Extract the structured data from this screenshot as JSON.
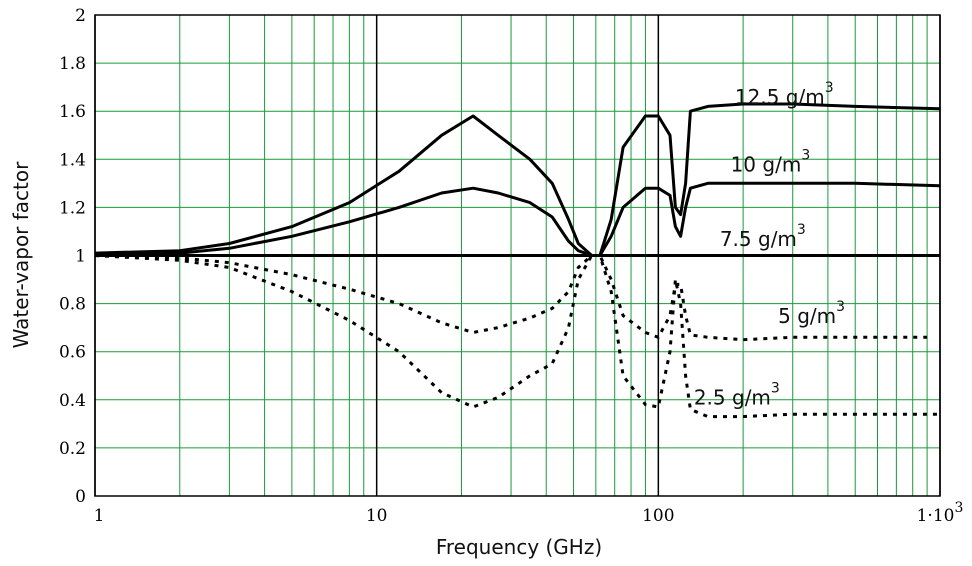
{
  "chart_data": {
    "type": "line",
    "xlabel": "Frequency (GHz)",
    "ylabel": "Water-vapor factor",
    "x_scale": "log",
    "xlim": [
      1,
      1000
    ],
    "ylim": [
      0,
      2
    ],
    "grid": true,
    "grid_color": "#1a9a3a",
    "line_color": "#000000",
    "x_ticks": [
      {
        "value": 1,
        "label": "1"
      },
      {
        "value": 10,
        "label": "10"
      },
      {
        "value": 100,
        "label": "100"
      },
      {
        "value": 1000,
        "label": "1·10",
        "sup": "3"
      }
    ],
    "y_ticks": [
      {
        "value": 0,
        "label": "0"
      },
      {
        "value": 0.2,
        "label": "0.2"
      },
      {
        "value": 0.4,
        "label": "0.4"
      },
      {
        "value": 0.6,
        "label": "0.6"
      },
      {
        "value": 0.8,
        "label": "0.8"
      },
      {
        "value": 1,
        "label": "1"
      },
      {
        "value": 1.2,
        "label": "1.2"
      },
      {
        "value": 1.4,
        "label": "1.4"
      },
      {
        "value": 1.6,
        "label": "1.6"
      },
      {
        "value": 1.8,
        "label": "1.8"
      },
      {
        "value": 2,
        "label": "2"
      }
    ],
    "series": [
      {
        "name": "12.5 g/m",
        "name_sup": "3",
        "style": "solid",
        "label_at": [
          280,
          1.63
        ],
        "x": [
          1,
          2,
          3,
          5,
          8,
          12,
          17,
          22,
          27,
          35,
          42,
          48,
          52,
          58,
          62,
          68,
          75,
          90,
          100,
          110,
          115,
          120,
          125,
          130,
          150,
          200,
          300,
          500,
          1000
        ],
        "y": [
          1.01,
          1.02,
          1.05,
          1.12,
          1.22,
          1.35,
          1.5,
          1.58,
          1.5,
          1.4,
          1.3,
          1.15,
          1.05,
          1.0,
          1.0,
          1.15,
          1.45,
          1.58,
          1.58,
          1.5,
          1.2,
          1.17,
          1.3,
          1.6,
          1.62,
          1.63,
          1.63,
          1.62,
          1.61
        ]
      },
      {
        "name": "10 g/m",
        "name_sup": "3",
        "style": "solid",
        "label_at": [
          250,
          1.35
        ],
        "x": [
          1,
          2,
          3,
          5,
          8,
          12,
          17,
          22,
          27,
          35,
          42,
          48,
          52,
          58,
          62,
          68,
          75,
          90,
          100,
          110,
          115,
          120,
          125,
          130,
          150,
          200,
          300,
          500,
          1000
        ],
        "y": [
          1.0,
          1.01,
          1.03,
          1.08,
          1.14,
          1.2,
          1.26,
          1.28,
          1.26,
          1.22,
          1.16,
          1.06,
          1.02,
          1.0,
          1.0,
          1.08,
          1.2,
          1.28,
          1.28,
          1.25,
          1.12,
          1.08,
          1.2,
          1.28,
          1.3,
          1.3,
          1.3,
          1.3,
          1.29
        ]
      },
      {
        "name": "7.5 g/m",
        "name_sup": "3",
        "style": "solid",
        "label_at": [
          235,
          1.04
        ],
        "x": [
          1,
          10,
          50,
          62,
          70,
          100,
          300,
          1000
        ],
        "y": [
          1.0,
          1.0,
          1.0,
          1.0,
          1.0,
          1.0,
          1.0,
          1.0
        ]
      },
      {
        "name": "5 g/m",
        "name_sup": "3",
        "style": "dotted",
        "label_at": [
          350,
          0.72
        ],
        "x": [
          1,
          2,
          3,
          5,
          8,
          12,
          17,
          22,
          27,
          35,
          42,
          48,
          52,
          58,
          62,
          68,
          75,
          90,
          100,
          110,
          115,
          120,
          125,
          130,
          150,
          200,
          300,
          500,
          900
        ],
        "y": [
          1.0,
          0.99,
          0.97,
          0.92,
          0.86,
          0.8,
          0.72,
          0.68,
          0.7,
          0.74,
          0.78,
          0.85,
          0.95,
          1.0,
          1.0,
          0.9,
          0.75,
          0.68,
          0.66,
          0.75,
          0.88,
          0.88,
          0.75,
          0.67,
          0.66,
          0.65,
          0.66,
          0.66,
          0.66
        ]
      },
      {
        "name": "2.5 g/m",
        "name_sup": "3",
        "style": "dotted",
        "label_at": [
          190,
          0.38
        ],
        "x": [
          1,
          2,
          3,
          5,
          8,
          12,
          17,
          22,
          27,
          35,
          42,
          48,
          52,
          58,
          62,
          68,
          75,
          90,
          100,
          110,
          115,
          120,
          125,
          130,
          150,
          200,
          300,
          500,
          1000
        ],
        "y": [
          1.0,
          0.98,
          0.95,
          0.85,
          0.73,
          0.6,
          0.43,
          0.37,
          0.41,
          0.5,
          0.55,
          0.7,
          0.9,
          1.0,
          1.0,
          0.85,
          0.5,
          0.38,
          0.37,
          0.6,
          0.9,
          0.8,
          0.5,
          0.36,
          0.33,
          0.33,
          0.34,
          0.34,
          0.34
        ]
      }
    ]
  }
}
